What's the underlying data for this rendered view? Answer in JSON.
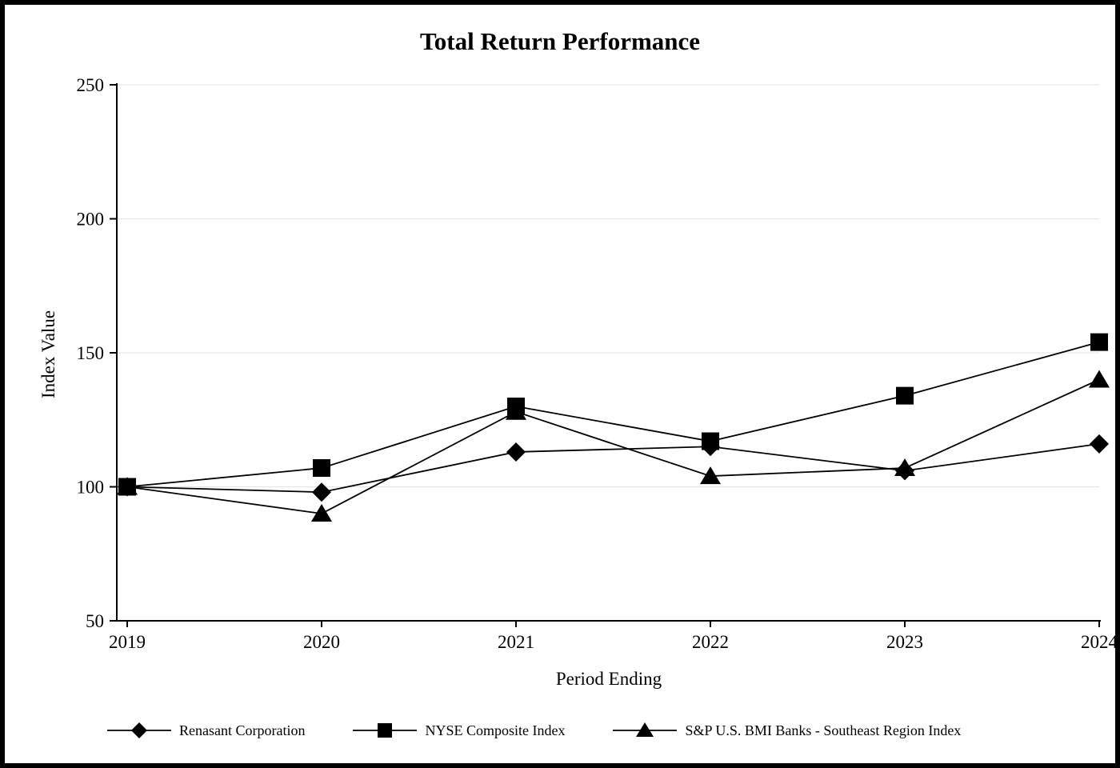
{
  "chart_data": {
    "type": "line",
    "title": "Total Return Performance",
    "xlabel": "Period Ending",
    "ylabel": "Index Value",
    "categories": [
      "2019",
      "2020",
      "2021",
      "2022",
      "2023",
      "2024"
    ],
    "ylim": [
      50,
      250
    ],
    "yticks": [
      50,
      100,
      150,
      200,
      250
    ],
    "grid": "horizontal-light",
    "legend_position": "bottom",
    "line_color": "#000000",
    "grid_color": "#e3e3e3",
    "series": [
      {
        "name": "Renasant Corporation",
        "marker": "diamond",
        "values": [
          100,
          98,
          113,
          115,
          106,
          116
        ]
      },
      {
        "name": "NYSE Composite Index",
        "marker": "square",
        "values": [
          100,
          107,
          130,
          117,
          134,
          154
        ]
      },
      {
        "name": "S&P U.S. BMI Banks - Southeast Region Index",
        "marker": "triangle",
        "values": [
          100,
          90,
          128,
          104,
          107,
          140
        ]
      }
    ]
  }
}
